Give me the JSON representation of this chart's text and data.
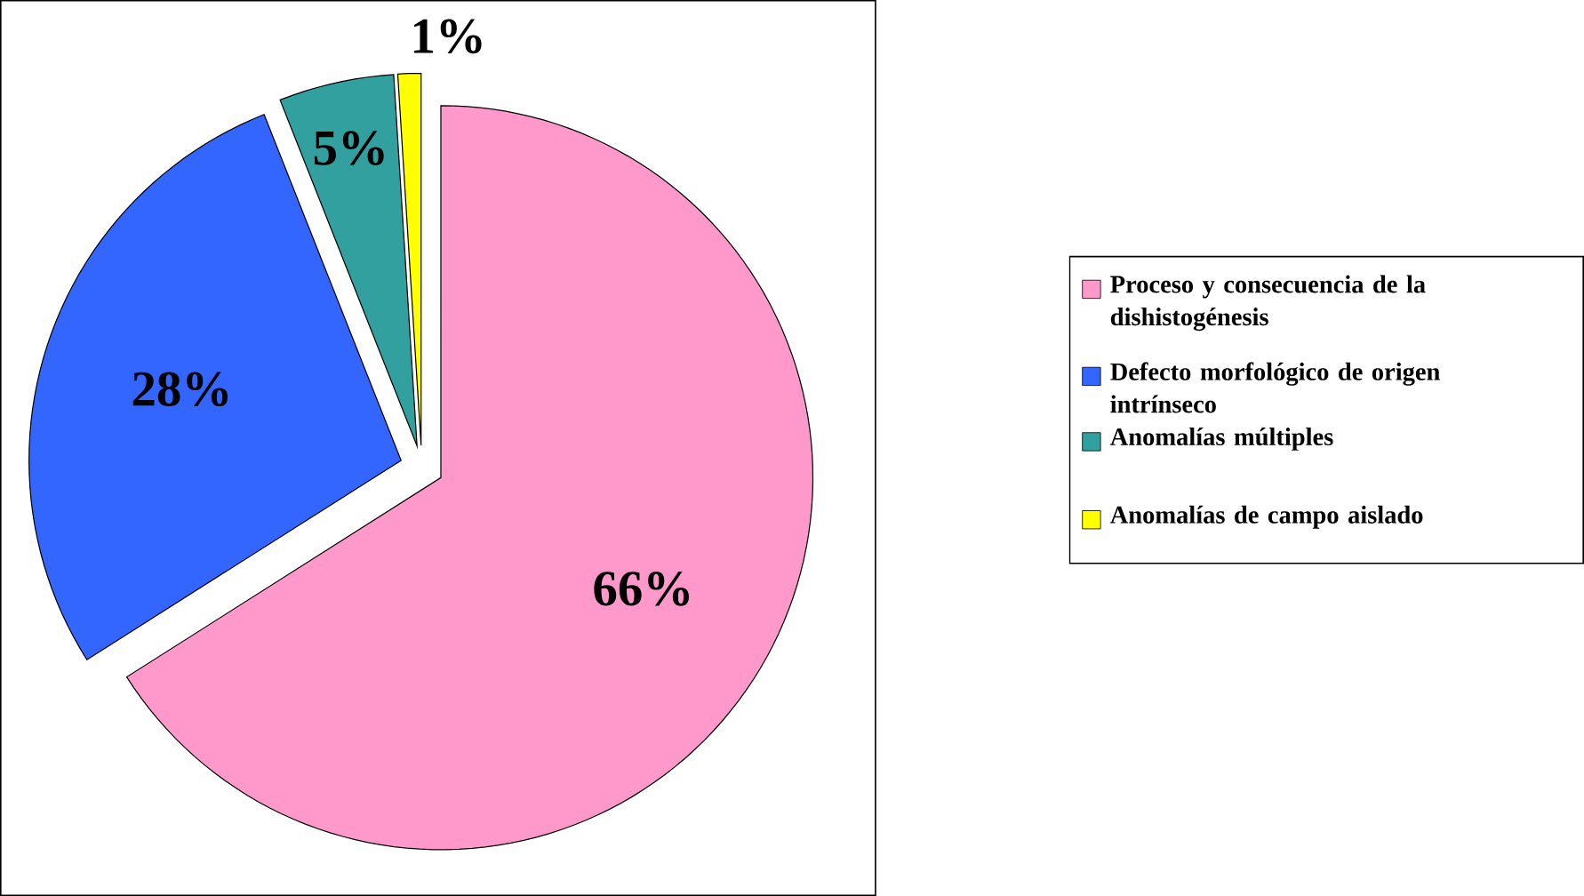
{
  "chart_data": {
    "type": "pie",
    "categories": [
      "Proceso y consecuencia de la dishistogénesis",
      "Defecto morfológico de origen intrínseco",
      "Anomalías múltiples",
      "Anomalías de campo aislado"
    ],
    "values": [
      66,
      28,
      5,
      1
    ],
    "colors": [
      "#ff99cc",
      "#3366ff",
      "#33a0a0",
      "#ffff00"
    ],
    "value_labels": [
      "66%",
      "28%",
      "5%",
      "1%"
    ],
    "legend": "right"
  }
}
